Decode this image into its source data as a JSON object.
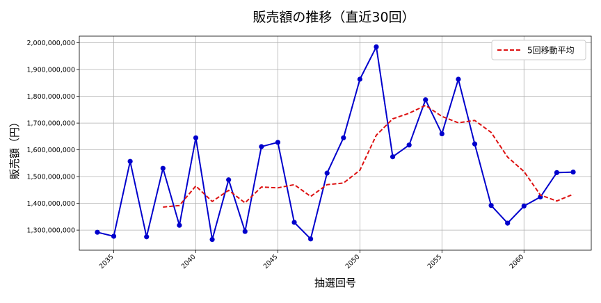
{
  "chart_data": {
    "type": "line",
    "title": "販売額の推移（直近30回）",
    "xlabel": "抽選回号",
    "ylabel": "販売額（円）",
    "xlim": [
      2032.9,
      2064.1
    ],
    "ylim": [
      1225000000,
      2025000000
    ],
    "x_ticks": [
      2035,
      2040,
      2045,
      2050,
      2055,
      2060
    ],
    "y_ticks": [
      1300000000,
      1400000000,
      1500000000,
      1600000000,
      1700000000,
      1800000000,
      1900000000,
      2000000000
    ],
    "y_tick_labels": [
      "1,300,000,000",
      "1,400,000,000",
      "1,500,000,000",
      "1,600,000,000",
      "1,700,000,000",
      "1,800,000,000",
      "1,900,000,000",
      "2,000,000,000"
    ],
    "grid": true,
    "legend_position": "top-right",
    "series": [
      {
        "name": "",
        "color": "#0000cc",
        "marker": "circle",
        "x": [
          2034,
          2035,
          2036,
          2037,
          2038,
          2039,
          2040,
          2041,
          2042,
          2043,
          2044,
          2045,
          2046,
          2047,
          2048,
          2049,
          2050,
          2051,
          2052,
          2053,
          2054,
          2055,
          2056,
          2057,
          2058,
          2059,
          2060,
          2061,
          2062,
          2063
        ],
        "values": [
          1292000000,
          1277000000,
          1557000000,
          1275000000,
          1531000000,
          1318000000,
          1645000000,
          1265000000,
          1488000000,
          1295000000,
          1612000000,
          1628000000,
          1329000000,
          1267000000,
          1513000000,
          1645000000,
          1864000000,
          1985000000,
          1574000000,
          1618000000,
          1787000000,
          1660000000,
          1864000000,
          1622000000,
          1392000000,
          1326000000,
          1390000000,
          1424000000,
          1515000000,
          1517000000
        ]
      },
      {
        "name": "5回移動平均",
        "color": "#dd1111",
        "dashed": true,
        "x": [
          2038,
          2039,
          2040,
          2041,
          2042,
          2043,
          2044,
          2045,
          2046,
          2047,
          2048,
          2049,
          2050,
          2051,
          2052,
          2053,
          2054,
          2055,
          2056,
          2057,
          2058,
          2059,
          2060,
          2061,
          2062,
          2063
        ],
        "values": [
          1386000000,
          1392000000,
          1465000000,
          1407000000,
          1449000000,
          1402000000,
          1461000000,
          1458000000,
          1470000000,
          1426000000,
          1470000000,
          1476000000,
          1524000000,
          1655000000,
          1716000000,
          1737000000,
          1766000000,
          1725000000,
          1701000000,
          1710000000,
          1665000000,
          1573000000,
          1519000000,
          1431000000,
          1409000000,
          1434000000
        ]
      }
    ]
  }
}
